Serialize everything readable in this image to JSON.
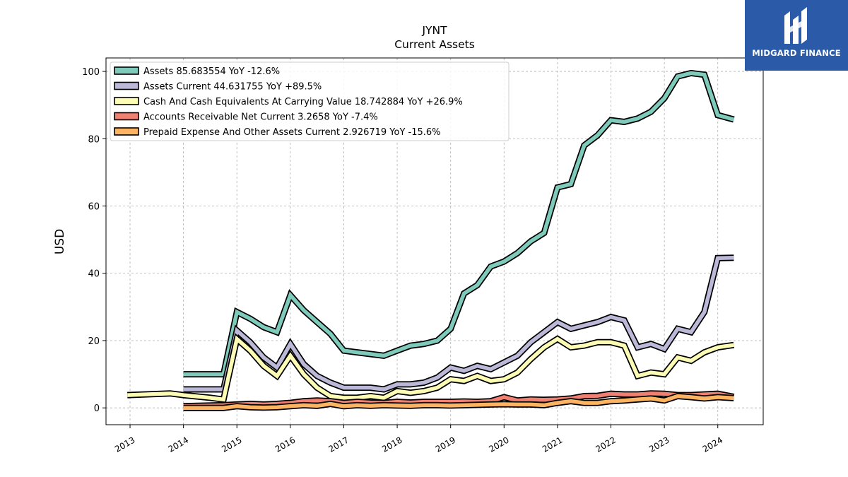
{
  "chart_data": {
    "type": "line",
    "title": "JYNT",
    "subtitle": "Current  Assets",
    "ylabel": "USD",
    "xlabel": "",
    "ylim": [
      -5,
      104
    ],
    "xlim": [
      2012.55,
      2024.85
    ],
    "yticks": [
      0,
      20,
      40,
      60,
      80,
      100
    ],
    "xticks": [
      "2013",
      "2014",
      "2015",
      "2016",
      "2017",
      "2018",
      "2019",
      "2020",
      "2021",
      "2022",
      "2023",
      "2024"
    ],
    "grid": true,
    "legend_position": "top-left",
    "series": [
      {
        "name": "Assets  85.683554 YoY -12.6%",
        "color": "#7fcbbb",
        "x": [
          2014.0,
          2014.75,
          2015.0,
          2015.25,
          2015.5,
          2015.75,
          2016.0,
          2016.25,
          2016.5,
          2016.75,
          2017.0,
          2017.25,
          2017.5,
          2017.75,
          2018.0,
          2018.25,
          2018.5,
          2018.75,
          2019.0,
          2019.25,
          2019.5,
          2019.75,
          2020.0,
          2020.25,
          2020.5,
          2020.75,
          2021.0,
          2021.25,
          2021.5,
          2021.75,
          2022.0,
          2022.25,
          2022.5,
          2022.75,
          2023.0,
          2023.25,
          2023.5,
          2023.75,
          2024.0,
          2024.3
        ],
        "values": [
          10,
          10,
          28.5,
          26.5,
          24,
          22.5,
          33.5,
          29,
          25.5,
          22,
          17,
          16.5,
          16,
          15.5,
          17,
          18.5,
          19,
          20,
          23.5,
          34,
          36.5,
          42,
          43.5,
          46,
          49.5,
          52,
          65.5,
          66.5,
          78,
          81,
          85.5,
          85,
          86,
          88,
          92,
          98.5,
          99.5,
          99,
          87,
          85.7
        ]
      },
      {
        "name": "Assets Current  44.631755 YoY +89.5%",
        "color": "#bcb8d8",
        "x": [
          2014.0,
          2014.75,
          2015.0,
          2015.25,
          2015.5,
          2015.75,
          2016.0,
          2016.25,
          2016.5,
          2016.75,
          2017.0,
          2017.25,
          2017.5,
          2017.75,
          2018.0,
          2018.25,
          2018.5,
          2018.75,
          2019.0,
          2019.25,
          2019.5,
          2019.75,
          2020.0,
          2020.25,
          2020.5,
          2020.75,
          2021.0,
          2021.25,
          2021.5,
          2021.75,
          2022.0,
          2022.25,
          2022.5,
          2022.75,
          2023.0,
          2023.25,
          2023.5,
          2023.75,
          2024.0,
          2024.3
        ],
        "values": [
          5.5,
          5.5,
          23,
          19.5,
          15,
          12,
          19,
          13,
          9.5,
          7.5,
          6,
          6,
          6,
          5.5,
          7,
          7,
          7.5,
          9,
          12,
          11,
          12.5,
          11.5,
          13.5,
          15.5,
          19.5,
          22.5,
          25.5,
          23.5,
          24.5,
          25.5,
          27,
          26,
          18,
          19,
          17.5,
          23.5,
          22.5,
          28.5,
          44.5,
          44.6
        ]
      },
      {
        "name": "Cash And Cash Equivalents At Carrying Value  18.742884 YoY +26.9%",
        "color": "#fdfcb4",
        "x": [
          2012.95,
          2013.75,
          2014.0,
          2014.5,
          2014.75,
          2015.0,
          2015.25,
          2015.5,
          2015.75,
          2016.0,
          2016.25,
          2016.5,
          2016.75,
          2017.0,
          2017.25,
          2017.5,
          2017.75,
          2018.0,
          2018.25,
          2018.5,
          2018.75,
          2019.0,
          2019.25,
          2019.5,
          2019.75,
          2020.0,
          2020.25,
          2020.5,
          2020.75,
          2021.0,
          2021.25,
          2021.5,
          2021.75,
          2022.0,
          2022.25,
          2022.5,
          2022.75,
          2023.0,
          2023.25,
          2023.5,
          2023.75,
          2024.0,
          2024.3
        ],
        "values": [
          3.8,
          4.3,
          3.8,
          3,
          2.5,
          20.5,
          17,
          12.5,
          9.5,
          15.5,
          10,
          6,
          3.5,
          3,
          3,
          3.5,
          3,
          5,
          4.5,
          5,
          6,
          8.5,
          8,
          9.5,
          8,
          8.5,
          10.5,
          14.5,
          18,
          20.5,
          18,
          18.5,
          19.5,
          19.5,
          18.5,
          9.5,
          10.5,
          10,
          15,
          14,
          16.5,
          18,
          18.7
        ]
      },
      {
        "name": "Accounts Receivable Net Current  3.2658 YoY -7.4%",
        "color": "#f08072",
        "x": [
          2014.0,
          2014.75,
          2015.0,
          2015.25,
          2015.5,
          2015.75,
          2016.0,
          2016.25,
          2016.5,
          2016.75,
          2017.0,
          2017.25,
          2017.5,
          2017.75,
          2018.0,
          2018.25,
          2018.5,
          2018.75,
          2019.0,
          2019.25,
          2019.5,
          2019.75,
          2020.0,
          2020.25,
          2020.5,
          2020.75,
          2021.0,
          2021.25,
          2021.5,
          2021.75,
          2022.0,
          2022.25,
          2022.5,
          2022.75,
          2023.0,
          2023.25,
          2023.5,
          2023.75,
          2024.0,
          2024.3
        ],
        "values": [
          0.5,
          0.8,
          1,
          1.2,
          1,
          1.2,
          1.5,
          2,
          2.2,
          2,
          1.5,
          1.8,
          1.6,
          1.5,
          1.8,
          1.6,
          1.8,
          1.8,
          1.8,
          1.9,
          1.8,
          2,
          3.2,
          2.2,
          2.5,
          2.4,
          2.5,
          2.8,
          3.5,
          3.6,
          4.2,
          4,
          4,
          4.3,
          4.2,
          3.8,
          3.8,
          4,
          4.2,
          3.3
        ]
      },
      {
        "name": "Prepaid Expense And Other Assets Current  2.926719 YoY -15.6%",
        "color": "#fdb462",
        "x": [
          2014.0,
          2014.75,
          2015.0,
          2015.25,
          2015.5,
          2015.75,
          2016.0,
          2016.25,
          2016.5,
          2016.75,
          2017.0,
          2017.25,
          2017.5,
          2017.75,
          2018.0,
          2018.25,
          2018.5,
          2018.75,
          2019.0,
          2019.25,
          2019.5,
          2019.75,
          2020.0,
          2020.25,
          2020.5,
          2020.75,
          2021.0,
          2021.25,
          2021.5,
          2021.75,
          2022.0,
          2022.25,
          2022.5,
          2022.75,
          2023.0,
          2023.25,
          2023.5,
          2023.75,
          2024.0,
          2024.3
        ],
        "values": [
          0,
          0,
          0.5,
          0.2,
          0.1,
          0.2,
          0.5,
          0.8,
          0.6,
          1.2,
          0.5,
          0.8,
          0.6,
          0.8,
          0.7,
          0.6,
          0.8,
          0.8,
          0.7,
          0.8,
          0.9,
          1,
          1.1,
          1,
          1,
          0.8,
          1.5,
          2,
          1.5,
          1.5,
          2,
          2.2,
          2.5,
          2.8,
          2.2,
          3.5,
          3.2,
          2.8,
          3.2,
          2.9
        ]
      }
    ]
  },
  "logo": {
    "text": "MIDGARD FINANCE",
    "bg_color": "#2a5aa8"
  }
}
